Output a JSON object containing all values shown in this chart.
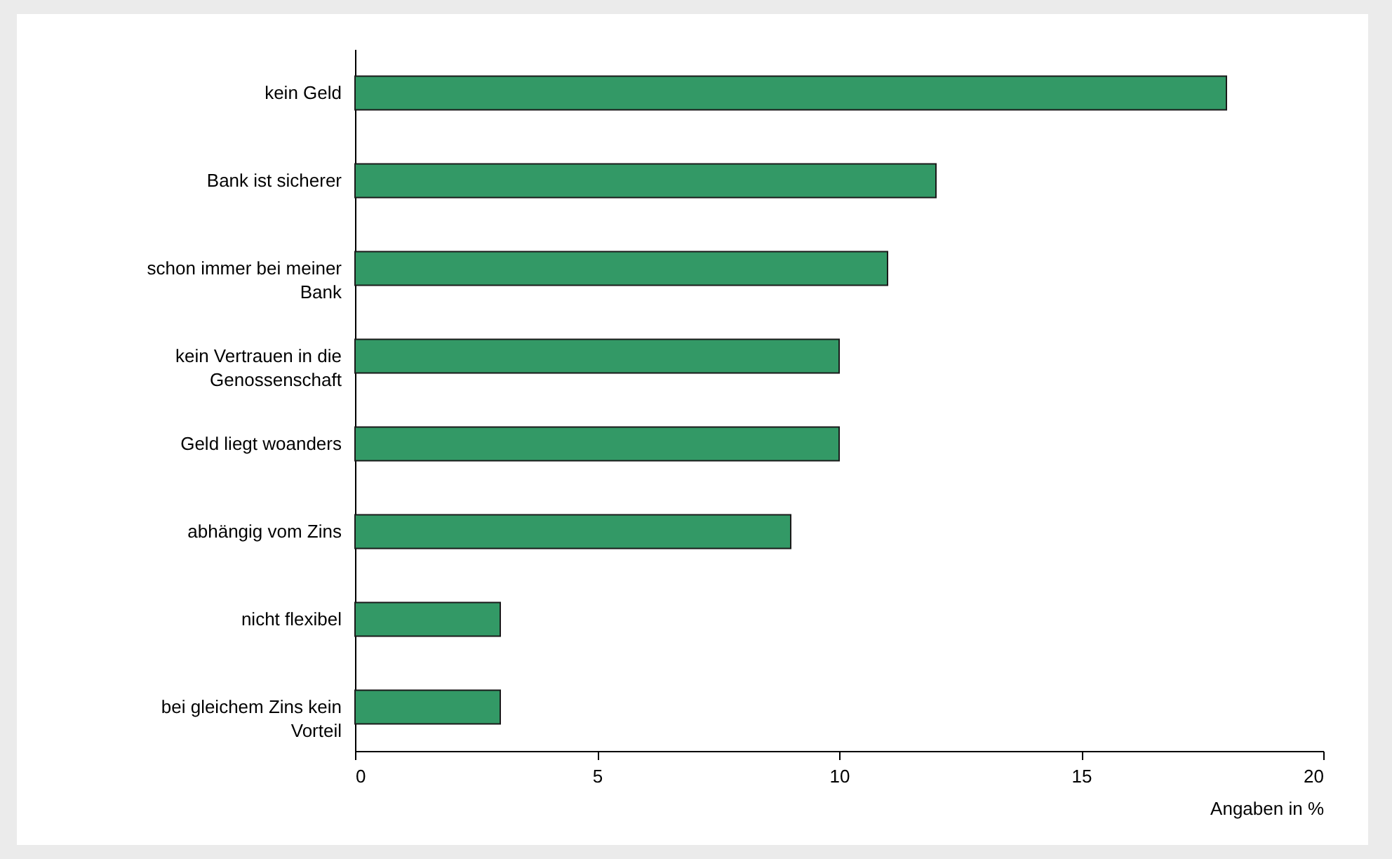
{
  "chart_data": {
    "type": "bar",
    "orientation": "horizontal",
    "xlabel": "Angaben in %",
    "categories": [
      "kein Geld",
      "Bank ist sicherer",
      "schon immer bei meiner Bank",
      "kein Vertrauen in die Genossenschaft",
      "Geld liegt woanders",
      "abhängig vom Zins",
      "nicht flexibel",
      "bei gleichem Zins kein Vorteil"
    ],
    "values": [
      18,
      12,
      11,
      10,
      10,
      9,
      3,
      3
    ],
    "color": "#339966",
    "xlim": [
      0,
      20
    ],
    "xticks": [
      0,
      5,
      10,
      15,
      20
    ],
    "grid": false
  }
}
